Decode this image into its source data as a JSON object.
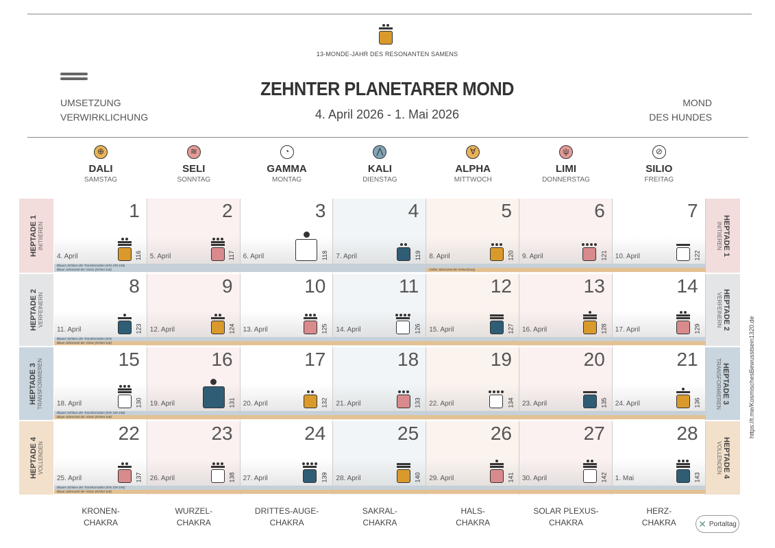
{
  "header": {
    "year_label": "13-MONDE-JAHR  DES RESONANTEN SAMENS",
    "title": "ZEHNTER PLANETARER MOND",
    "date_range": "4. April 2026  - 1. Mai 2026",
    "left_line1": "UMSETZUNG",
    "left_line2": "VERWIRKLICHUNG",
    "right_line1": "MOND",
    "right_line2": "DES HUNDES",
    "year_kin": {
      "tone": 7,
      "color": "#d99a2b"
    }
  },
  "colors": {
    "yellow": "#d99a2b",
    "red": "#d98a8c",
    "white": "#ffffff",
    "blue": "#2f5d75"
  },
  "plasmas": [
    {
      "name": "DALI",
      "day": "SAMSTAG",
      "color": "#e8b25a",
      "symbol": "⊕"
    },
    {
      "name": "SELI",
      "day": "SONNTAG",
      "color": "#e39a96",
      "symbol": "≋"
    },
    {
      "name": "GAMMA",
      "day": "MONTAG",
      "color": "#ffffff",
      "symbol": "◔"
    },
    {
      "name": "KALI",
      "day": "DIENSTAG",
      "color": "#7fa4b5",
      "symbol": "⋀"
    },
    {
      "name": "ALPHA",
      "day": "MITTWOCH",
      "color": "#e8b25a",
      "symbol": "∀"
    },
    {
      "name": "LIMI",
      "day": "DONNERSTAG",
      "color": "#e39a96",
      "symbol": "ψ"
    },
    {
      "name": "SILIO",
      "day": "FREITAG",
      "color": "#ffffff",
      "symbol": "⊘"
    }
  ],
  "heptads": [
    {
      "title": "HEPTADE 1",
      "sub": "INITIIEREN",
      "color": "#f2dcdc"
    },
    {
      "title": "HEPTADE 2",
      "sub": "VERFEINERN",
      "color": "#e3e5e7"
    },
    {
      "title": "HEPTADE 3",
      "sub": "TRANSFORMIEREN",
      "color": "#c9d6df"
    },
    {
      "title": "HEPTADE 4",
      "sub": "VOLLENDEN",
      "color": "#f3e0cb"
    }
  ],
  "days": [
    {
      "n": "1",
      "date": "4. April",
      "kin": "116",
      "tone": 12,
      "color": "#d99a2b"
    },
    {
      "n": "2",
      "date": "5. April",
      "kin": "117",
      "tone": 13,
      "color": "#d98a8c"
    },
    {
      "n": "3",
      "date": "6. April",
      "kin": "118",
      "tone": 1,
      "color": "#ffffff",
      "portal": true
    },
    {
      "n": "4",
      "date": "7. April",
      "kin": "119",
      "tone": 2,
      "color": "#2f5d75"
    },
    {
      "n": "5",
      "date": "8. April",
      "kin": "120",
      "tone": 3,
      "color": "#d99a2b"
    },
    {
      "n": "6",
      "date": "9. April",
      "kin": "121",
      "tone": 4,
      "color": "#d98a8c"
    },
    {
      "n": "7",
      "date": "10. April",
      "kin": "122",
      "tone": 5,
      "color": "#ffffff"
    },
    {
      "n": "8",
      "date": "11. April",
      "kin": "123",
      "tone": 6,
      "color": "#2f5d75"
    },
    {
      "n": "9",
      "date": "12. April",
      "kin": "124",
      "tone": 7,
      "color": "#d99a2b"
    },
    {
      "n": "10",
      "date": "13. April",
      "kin": "125",
      "tone": 8,
      "color": "#d98a8c"
    },
    {
      "n": "11",
      "date": "14. April",
      "kin": "126",
      "tone": 9,
      "color": "#ffffff"
    },
    {
      "n": "12",
      "date": "15. April",
      "kin": "127",
      "tone": 10,
      "color": "#2f5d75"
    },
    {
      "n": "13",
      "date": "16. April",
      "kin": "128",
      "tone": 11,
      "color": "#d99a2b"
    },
    {
      "n": "14",
      "date": "17. April",
      "kin": "129",
      "tone": 12,
      "color": "#d98a8c"
    },
    {
      "n": "15",
      "date": "18. April",
      "kin": "130",
      "tone": 13,
      "color": "#ffffff"
    },
    {
      "n": "16",
      "date": "19. April",
      "kin": "131",
      "tone": 1,
      "color": "#2f5d75",
      "portal": true
    },
    {
      "n": "17",
      "date": "20. April",
      "kin": "132",
      "tone": 2,
      "color": "#d99a2b"
    },
    {
      "n": "18",
      "date": "21. April",
      "kin": "133",
      "tone": 3,
      "color": "#d98a8c"
    },
    {
      "n": "19",
      "date": "22. April",
      "kin": "134",
      "tone": 4,
      "color": "#ffffff"
    },
    {
      "n": "20",
      "date": "23. April",
      "kin": "135",
      "tone": 5,
      "color": "#2f5d75"
    },
    {
      "n": "21",
      "date": "24. April",
      "kin": "136",
      "tone": 6,
      "color": "#d99a2b"
    },
    {
      "n": "22",
      "date": "25. April",
      "kin": "137",
      "tone": 7,
      "color": "#d98a8c"
    },
    {
      "n": "23",
      "date": "26. April",
      "kin": "138",
      "tone": 8,
      "color": "#ffffff"
    },
    {
      "n": "24",
      "date": "27. April",
      "kin": "139",
      "tone": 9,
      "color": "#2f5d75"
    },
    {
      "n": "25",
      "date": "28. April",
      "kin": "140",
      "tone": 10,
      "color": "#d99a2b"
    },
    {
      "n": "26",
      "date": "29. April",
      "kin": "141",
      "tone": 11,
      "color": "#d98a8c"
    },
    {
      "n": "27",
      "date": "30. April",
      "kin": "142",
      "tone": 12,
      "color": "#ffffff"
    },
    {
      "n": "28",
      "date": "1. Mai",
      "kin": "143",
      "tone": 13,
      "color": "#2f5d75"
    }
  ],
  "bands": {
    "castle": "Blaues Schloss der Transformation (KIN 105-156)",
    "season_blue": "Blaue Jahreszeit der Vision (KIN53-118)",
    "season_yellow": "Gelbe Jahreszeit der Erleuchtung",
    "castle_short": "Blaues Schloss der Transformation (KIN"
  },
  "chakras": [
    [
      "KRONEN-",
      "CHAKRA"
    ],
    [
      "WURZEL-",
      "CHAKRA"
    ],
    [
      "DRITTES-AUGE-",
      "CHAKRA"
    ],
    [
      "SAKRAL-",
      "CHAKRA"
    ],
    [
      "HALS-",
      "CHAKRA"
    ],
    [
      "SOLAR PLEXUS-",
      "CHAKRA"
    ],
    [
      "HERZ-",
      "CHAKRA"
    ]
  ],
  "portal_label": "Portaltag",
  "url": "https://t.me/KosmischesBewusstsein1320.de"
}
